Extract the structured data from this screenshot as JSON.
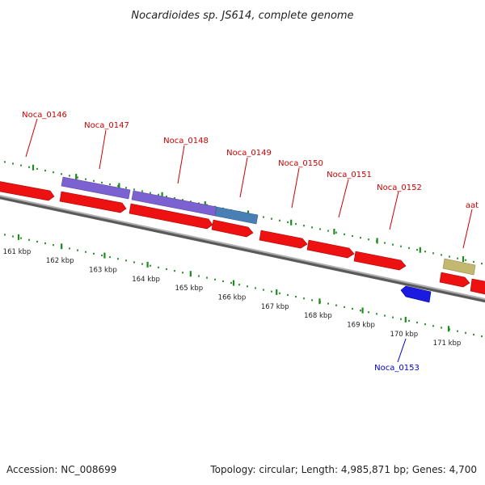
{
  "title": "Nocardioides sp. JS614, complete genome",
  "footer": {
    "accession": "Accession: NC_008699",
    "info": "Topology: circular; Length: 4,985,871 bp; Genes: 4,700"
  },
  "colors": {
    "forward_gene": "#ee1111",
    "reverse_gene": "#1a1ae0",
    "purple_feature": "#7b62d0",
    "blue_feature": "#4a7fb5",
    "khaki_feature": "#c2b870",
    "tick": "#1f8a1f",
    "backbone": "#8a8a8a",
    "forward_label": "#cc0000",
    "reverse_label": "#0000cc"
  },
  "ticks": [
    {
      "kbp": 161,
      "label": "161 kbp"
    },
    {
      "kbp": 162,
      "label": "162 kbp"
    },
    {
      "kbp": 163,
      "label": "163 kbp"
    },
    {
      "kbp": 164,
      "label": "164 kbp"
    },
    {
      "kbp": 165,
      "label": "165 kbp"
    },
    {
      "kbp": 166,
      "label": "166 kbp"
    },
    {
      "kbp": 167,
      "label": "167 kbp"
    },
    {
      "kbp": 168,
      "label": "168 kbp"
    },
    {
      "kbp": 169,
      "label": "169 kbp"
    },
    {
      "kbp": 170,
      "label": "170 kbp"
    },
    {
      "kbp": 171,
      "label": "171 kbp"
    }
  ],
  "genes": [
    {
      "name": "Noca_0146",
      "strand": "+"
    },
    {
      "name": "Noca_0147",
      "strand": "+"
    },
    {
      "name": "Noca_0148",
      "strand": "+"
    },
    {
      "name": "Noca_0149",
      "strand": "+"
    },
    {
      "name": "Noca_0150",
      "strand": "+"
    },
    {
      "name": "Noca_0151",
      "strand": "+"
    },
    {
      "name": "Noca_0152",
      "strand": "+"
    },
    {
      "name": "aat",
      "strand": "+"
    },
    {
      "name": "Noca_0153",
      "strand": "-"
    }
  ]
}
